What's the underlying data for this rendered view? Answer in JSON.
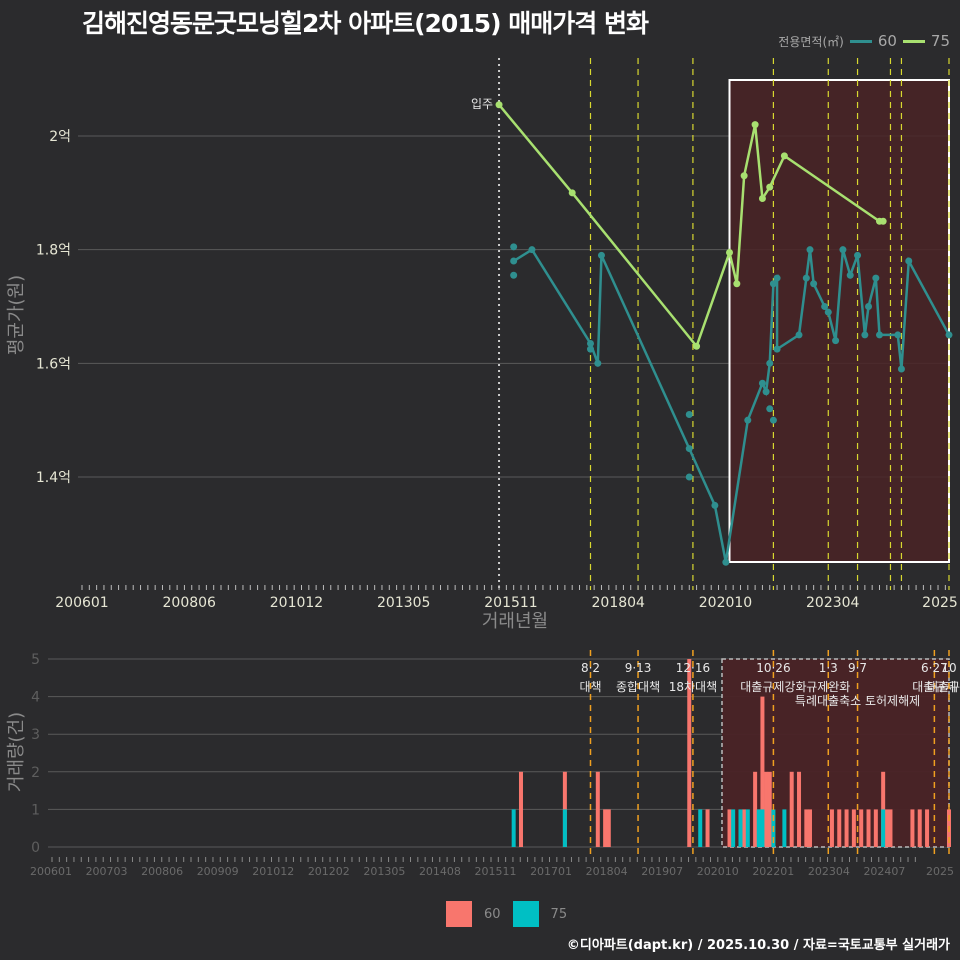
{
  "title": "김해진영동문굿모닝힐2차 아파트(2015) 매매가격 변화",
  "legend_top": {
    "title": "전용면적(㎡)",
    "items": [
      {
        "label": "60",
        "color": "#2f8f8f"
      },
      {
        "label": "75",
        "color": "#a8e070"
      }
    ]
  },
  "legend_bottom": {
    "items": [
      {
        "label": "60",
        "color": "#f8766d"
      },
      {
        "label": "75",
        "color": "#00bfc4"
      }
    ]
  },
  "footer": "©디아파트(dapt.kr) / 2025.10.30 / 자료=국토교통부 실거래가",
  "colors": {
    "background": "#2b2b2d",
    "highlight": "#4a2326",
    "line60": "#2f8f8f",
    "line75": "#a8e070",
    "policy_top": "#d8d830",
    "policy_bottom": "#f0a020"
  },
  "chart_data": [
    {
      "type": "line",
      "title": "평균가 추이",
      "xlabel": "거래년월",
      "ylabel": "평균가(원)",
      "x_ticks": [
        "200601",
        "200806",
        "201012",
        "201305",
        "201511",
        "201804",
        "202010",
        "202304",
        "2025"
      ],
      "y_ticks": [
        "1.4억",
        "1.6억",
        "1.8억",
        "2억"
      ],
      "ylim": [
        1.22,
        2.08
      ],
      "annotation": {
        "label": "입주",
        "x": "201507"
      },
      "highlight_range": [
        "202010",
        "202510"
      ],
      "policy_lines": [
        "201708",
        "201809",
        "201912",
        "202110",
        "202301",
        "202309",
        "202406",
        "202409",
        "202510"
      ],
      "series": [
        {
          "name": "60",
          "points": [
            [
              "201511",
              1.78
            ],
            [
              "201604",
              1.8
            ],
            [
              "201708",
              1.635
            ],
            [
              "201710",
              1.6
            ],
            [
              "201711",
              1.79
            ],
            [
              "201911",
              1.45
            ],
            [
              "202006",
              1.35
            ],
            [
              "202009",
              1.25
            ],
            [
              "202103",
              1.5
            ],
            [
              "202107",
              1.565
            ],
            [
              "202108",
              1.55
            ],
            [
              "202109",
              1.6
            ],
            [
              "202110",
              1.74
            ],
            [
              "202111",
              1.75
            ],
            [
              "202111",
              1.625
            ],
            [
              "202205",
              1.65
            ],
            [
              "202207",
              1.75
            ],
            [
              "202208",
              1.8
            ],
            [
              "202209",
              1.74
            ],
            [
              "202212",
              1.7
            ],
            [
              "202301",
              1.69
            ],
            [
              "202303",
              1.64
            ],
            [
              "202305",
              1.8
            ],
            [
              "202307",
              1.755
            ],
            [
              "202309",
              1.79
            ],
            [
              "202311",
              1.65
            ],
            [
              "202312",
              1.7
            ],
            [
              "202402",
              1.75
            ],
            [
              "202403",
              1.65
            ],
            [
              "202408",
              1.65
            ],
            [
              "202409",
              1.59
            ],
            [
              "202411",
              1.78
            ],
            [
              "202510",
              1.65
            ]
          ],
          "extra_points": [
            [
              "201511",
              1.805
            ],
            [
              "201511",
              1.755
            ],
            [
              "201708",
              1.625
            ],
            [
              "201911",
              1.51
            ],
            [
              "201911",
              1.4
            ],
            [
              "202109",
              1.52
            ],
            [
              "202110",
              1.5
            ]
          ]
        },
        {
          "name": "75",
          "points": [
            [
              "201507",
              2.055
            ],
            [
              "201703",
              1.9
            ],
            [
              "202001",
              1.63
            ],
            [
              "202010",
              1.795
            ],
            [
              "202012",
              1.74
            ],
            [
              "202102",
              1.93
            ],
            [
              "202105",
              2.02
            ],
            [
              "202107",
              1.89
            ],
            [
              "202109",
              1.91
            ],
            [
              "202201",
              1.965
            ],
            [
              "202403",
              1.85
            ],
            [
              "202404",
              1.85
            ]
          ]
        }
      ]
    },
    {
      "type": "bar",
      "title": "거래량",
      "xlabel": "",
      "ylabel": "거래량(건)",
      "y_ticks": [
        "0",
        "1",
        "2",
        "3",
        "4",
        "5"
      ],
      "ylim": [
        0,
        5
      ],
      "x_ticks": [
        "200601",
        "200703",
        "200806",
        "200909",
        "201012",
        "201202",
        "201305",
        "201408",
        "201511",
        "201701",
        "201804",
        "201907",
        "202010",
        "202201",
        "202304",
        "202407",
        "2025"
      ],
      "policy_annotations": [
        {
          "x": "201708",
          "label": "8·2 대책"
        },
        {
          "x": "201809",
          "label": "9·13 종합대책"
        },
        {
          "x": "201912",
          "label": "12·16 18차대책"
        },
        {
          "x": "202110",
          "label": "10·26 대출규제강화"
        },
        {
          "x": "202301",
          "label": "1·3 규제완화"
        },
        {
          "x": "202309",
          "label": "9·7 특례대출축소 토허제해제"
        },
        {
          "x": "202506",
          "label": "6·27 대출규제"
        },
        {
          "x": "202510",
          "label": "10 대출규제"
        }
      ],
      "series": [
        {
          "name": "60",
          "values": [
            [
              "201601",
              2
            ],
            [
              "201701",
              2
            ],
            [
              "201710",
              2
            ],
            [
              "201712",
              1
            ],
            [
              "201801",
              1
            ],
            [
              "201911",
              5
            ],
            [
              "202004",
              1
            ],
            [
              "202010",
              1
            ],
            [
              "202102",
              1
            ],
            [
              "202105",
              2
            ],
            [
              "202106",
              1
            ],
            [
              "202107",
              4
            ],
            [
              "202108",
              2
            ],
            [
              "202109",
              2
            ],
            [
              "202203",
              2
            ],
            [
              "202205",
              2
            ],
            [
              "202207",
              1
            ],
            [
              "202208",
              1
            ],
            [
              "202302",
              1
            ],
            [
              "202304",
              1
            ],
            [
              "202306",
              1
            ],
            [
              "202308",
              1
            ],
            [
              "202310",
              1
            ],
            [
              "202312",
              1
            ],
            [
              "202402",
              1
            ],
            [
              "202404",
              2
            ],
            [
              "202405",
              1
            ],
            [
              "202406",
              1
            ],
            [
              "202412",
              1
            ],
            [
              "202502",
              1
            ],
            [
              "202504",
              1
            ],
            [
              "202510",
              1
            ]
          ]
        },
        {
          "name": "75",
          "values": [
            [
              "201511",
              1
            ],
            [
              "201701",
              1
            ],
            [
              "202002",
              1
            ],
            [
              "202011",
              1
            ],
            [
              "202101",
              1
            ],
            [
              "202103",
              1
            ],
            [
              "202106",
              1
            ],
            [
              "202107",
              1
            ],
            [
              "202110",
              1
            ],
            [
              "202201",
              1
            ],
            [
              "202404",
              1
            ]
          ]
        }
      ]
    }
  ]
}
